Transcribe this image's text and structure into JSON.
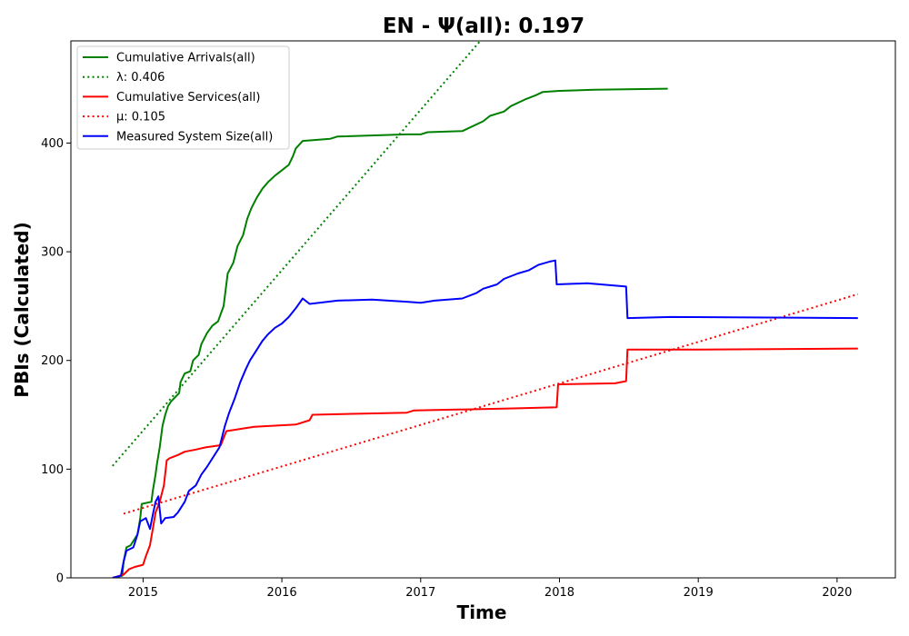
{
  "chart_data": {
    "type": "line",
    "title": "EN -  Ψ(all): 0.197",
    "xlabel": "Time",
    "ylabel": "PBIs (Calculated)",
    "xlim": [
      2014.48,
      2020.42
    ],
    "ylim": [
      0,
      494
    ],
    "x_ticks": [
      2015,
      2016,
      2017,
      2018,
      2019,
      2020
    ],
    "y_ticks": [
      0,
      100,
      200,
      300,
      400
    ],
    "grid": false,
    "legend_position": "top-left",
    "series": [
      {
        "name": "Cumulative Arrivals(all)",
        "color": "#008000",
        "style": "solid",
        "points": [
          [
            2014.78,
            0
          ],
          [
            2014.85,
            2
          ],
          [
            2014.86,
            15
          ],
          [
            2014.88,
            28
          ],
          [
            2014.91,
            30
          ],
          [
            2014.96,
            40
          ],
          [
            2014.98,
            55
          ],
          [
            2014.99,
            68
          ],
          [
            2015.06,
            70
          ],
          [
            2015.07,
            80
          ],
          [
            2015.09,
            95
          ],
          [
            2015.1,
            105
          ],
          [
            2015.12,
            120
          ],
          [
            2015.14,
            140
          ],
          [
            2015.16,
            150
          ],
          [
            2015.18,
            158
          ],
          [
            2015.2,
            162
          ],
          [
            2015.26,
            170
          ],
          [
            2015.27,
            180
          ],
          [
            2015.3,
            188
          ],
          [
            2015.34,
            190
          ],
          [
            2015.36,
            200
          ],
          [
            2015.4,
            205
          ],
          [
            2015.42,
            215
          ],
          [
            2015.46,
            225
          ],
          [
            2015.5,
            232
          ],
          [
            2015.54,
            236
          ],
          [
            2015.58,
            250
          ],
          [
            2015.6,
            270
          ],
          [
            2015.61,
            280
          ],
          [
            2015.65,
            290
          ],
          [
            2015.68,
            305
          ],
          [
            2015.72,
            315
          ],
          [
            2015.75,
            330
          ],
          [
            2015.78,
            340
          ],
          [
            2015.82,
            350
          ],
          [
            2015.86,
            358
          ],
          [
            2015.9,
            364
          ],
          [
            2015.95,
            370
          ],
          [
            2016.0,
            375
          ],
          [
            2016.05,
            380
          ],
          [
            2016.08,
            388
          ],
          [
            2016.1,
            395
          ],
          [
            2016.15,
            402
          ],
          [
            2016.35,
            404
          ],
          [
            2016.4,
            406
          ],
          [
            2016.9,
            408
          ],
          [
            2017.0,
            408
          ],
          [
            2017.05,
            410
          ],
          [
            2017.3,
            411
          ],
          [
            2017.35,
            414
          ],
          [
            2017.45,
            420
          ],
          [
            2017.5,
            425
          ],
          [
            2017.6,
            429
          ],
          [
            2017.65,
            434
          ],
          [
            2017.75,
            440
          ],
          [
            2017.83,
            444
          ],
          [
            2017.88,
            447
          ],
          [
            2018.0,
            448
          ],
          [
            2018.25,
            449
          ],
          [
            2018.78,
            450
          ]
        ]
      },
      {
        "name": "λ: 0.406",
        "color": "#008000",
        "style": "dotted",
        "points": [
          [
            2014.78,
            103
          ],
          [
            2017.45,
            497
          ]
        ]
      },
      {
        "name": "Cumulative Services(all)",
        "color": "#ff0000",
        "style": "solid",
        "points": [
          [
            2014.78,
            0
          ],
          [
            2014.86,
            3
          ],
          [
            2014.9,
            8
          ],
          [
            2014.94,
            10
          ],
          [
            2015.0,
            12
          ],
          [
            2015.02,
            20
          ],
          [
            2015.05,
            30
          ],
          [
            2015.07,
            45
          ],
          [
            2015.09,
            60
          ],
          [
            2015.12,
            70
          ],
          [
            2015.15,
            85
          ],
          [
            2015.17,
            108
          ],
          [
            2015.19,
            110
          ],
          [
            2015.25,
            113
          ],
          [
            2015.3,
            116
          ],
          [
            2015.38,
            118
          ],
          [
            2015.45,
            120
          ],
          [
            2015.56,
            122
          ],
          [
            2015.6,
            135
          ],
          [
            2015.7,
            137
          ],
          [
            2015.8,
            139
          ],
          [
            2016.1,
            141
          ],
          [
            2016.2,
            145
          ],
          [
            2016.22,
            150
          ],
          [
            2016.9,
            152
          ],
          [
            2016.95,
            154
          ],
          [
            2017.7,
            156
          ],
          [
            2017.98,
            157
          ],
          [
            2017.99,
            178
          ],
          [
            2018.4,
            179
          ],
          [
            2018.48,
            181
          ],
          [
            2018.49,
            210
          ],
          [
            2019.0,
            210
          ],
          [
            2020.15,
            211
          ]
        ]
      },
      {
        "name": "μ: 0.105",
        "color": "#ff0000",
        "style": "dotted",
        "points": [
          [
            2014.86,
            59
          ],
          [
            2020.15,
            261
          ]
        ]
      },
      {
        "name": "Measured System Size(all)",
        "color": "#0000ff",
        "style": "solid",
        "points": [
          [
            2014.78,
            0
          ],
          [
            2014.84,
            2
          ],
          [
            2014.86,
            15
          ],
          [
            2014.88,
            25
          ],
          [
            2014.93,
            28
          ],
          [
            2014.96,
            40
          ],
          [
            2014.98,
            52
          ],
          [
            2015.02,
            55
          ],
          [
            2015.05,
            45
          ],
          [
            2015.07,
            58
          ],
          [
            2015.09,
            70
          ],
          [
            2015.11,
            75
          ],
          [
            2015.13,
            50
          ],
          [
            2015.16,
            55
          ],
          [
            2015.22,
            56
          ],
          [
            2015.25,
            60
          ],
          [
            2015.3,
            70
          ],
          [
            2015.33,
            80
          ],
          [
            2015.38,
            85
          ],
          [
            2015.42,
            95
          ],
          [
            2015.46,
            102
          ],
          [
            2015.5,
            110
          ],
          [
            2015.55,
            120
          ],
          [
            2015.59,
            140
          ],
          [
            2015.62,
            152
          ],
          [
            2015.66,
            165
          ],
          [
            2015.7,
            180
          ],
          [
            2015.74,
            192
          ],
          [
            2015.77,
            200
          ],
          [
            2015.82,
            210
          ],
          [
            2015.86,
            218
          ],
          [
            2015.9,
            224
          ],
          [
            2015.95,
            230
          ],
          [
            2016.0,
            234
          ],
          [
            2016.05,
            240
          ],
          [
            2016.1,
            248
          ],
          [
            2016.15,
            257
          ],
          [
            2016.2,
            252
          ],
          [
            2016.4,
            255
          ],
          [
            2016.65,
            256
          ],
          [
            2016.9,
            254
          ],
          [
            2017.0,
            253
          ],
          [
            2017.1,
            255
          ],
          [
            2017.3,
            257
          ],
          [
            2017.4,
            262
          ],
          [
            2017.45,
            266
          ],
          [
            2017.55,
            270
          ],
          [
            2017.6,
            275
          ],
          [
            2017.7,
            280
          ],
          [
            2017.78,
            283
          ],
          [
            2017.85,
            288
          ],
          [
            2017.93,
            291
          ],
          [
            2017.97,
            292
          ],
          [
            2017.98,
            270
          ],
          [
            2018.2,
            271
          ],
          [
            2018.48,
            268
          ],
          [
            2018.49,
            239
          ],
          [
            2018.8,
            240
          ],
          [
            2020.15,
            239
          ]
        ]
      }
    ]
  }
}
